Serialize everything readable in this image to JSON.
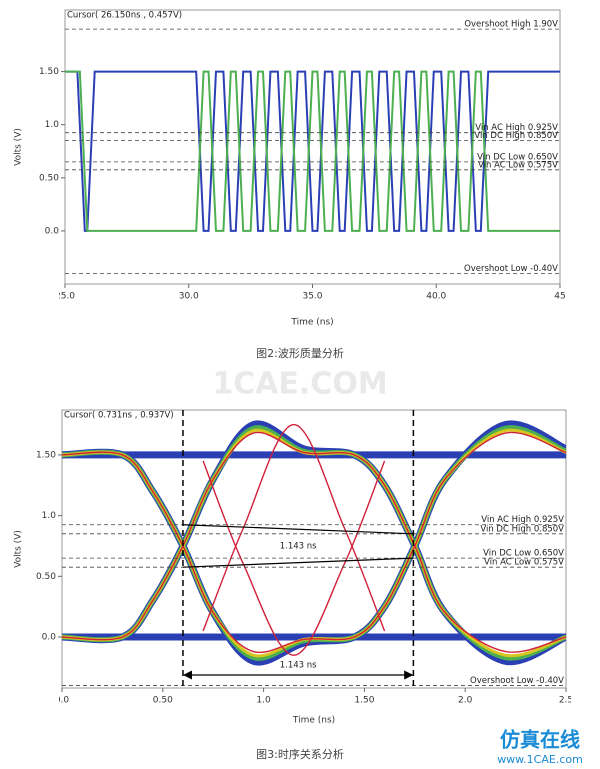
{
  "chart_data": [
    {
      "type": "line",
      "cursor": "Cursor( 26.150ns , 0.457V)",
      "xlabel": "Time (ns)",
      "ylabel": "Volts (V)",
      "caption": "图2:波形质量分析",
      "xlim": [
        25,
        45
      ],
      "xticks": [
        {
          "value": 25,
          "label": "25.0"
        },
        {
          "value": 30,
          "label": "30.0"
        },
        {
          "value": 35,
          "label": "35.0"
        },
        {
          "value": 40,
          "label": "40.0"
        },
        45
      ],
      "ylim": [
        -0.5,
        2.08
      ],
      "yticks": [
        {
          "value": 0,
          "label": "0.0"
        },
        {
          "value": 0.5,
          "label": "0.50"
        },
        {
          "value": 1,
          "label": "1.0"
        },
        {
          "value": 1.5,
          "label": "1.50"
        }
      ],
      "reference_lines": [
        {
          "label": "Overshoot High 1.90V",
          "value": 1.9
        },
        {
          "label": "Vin AC High  0.925V",
          "value": 0.925
        },
        {
          "label": "Vin DC High  0.850V",
          "value": 0.85
        },
        {
          "label": "Vin DC Low  0.650V",
          "value": 0.65
        },
        {
          "label": "Vin AC Low  0.575V",
          "value": 0.575
        },
        {
          "label": "Overshoot Low -0.40V",
          "value": -0.4
        }
      ],
      "series": [
        {
          "color": "#2b3fb5",
          "x": [
            25,
            25.5,
            25.8,
            25.9,
            26.2,
            30.3,
            30.6,
            30.8,
            31.1,
            31.4,
            31.7,
            31.9,
            32.2,
            32.5,
            32.8,
            33.0,
            33.3,
            33.6,
            33.9,
            34.1,
            34.4,
            34.7,
            35.0,
            35.2,
            35.5,
            35.8,
            36.1,
            36.3,
            36.6,
            36.9,
            37.2,
            37.4,
            37.7,
            38.0,
            38.3,
            38.5,
            38.8,
            39.1,
            39.4,
            39.6,
            39.9,
            40.2,
            40.5,
            40.7,
            41.0,
            41.3,
            41.6,
            41.8,
            42.1,
            45
          ],
          "values": [
            1.5,
            1.5,
            0,
            0,
            1.5,
            1.5,
            0,
            0,
            1.5,
            1.5,
            0,
            0,
            1.5,
            1.5,
            0,
            0,
            1.5,
            1.5,
            0,
            0,
            1.5,
            1.5,
            0,
            0,
            1.5,
            1.5,
            0,
            0,
            1.5,
            1.5,
            0,
            0,
            1.5,
            1.5,
            0,
            0,
            1.5,
            1.5,
            0,
            0,
            1.5,
            1.5,
            0,
            0,
            1.5,
            1.5,
            0,
            0,
            1.5,
            1.5
          ]
        },
        {
          "color": "#4caf50",
          "x": [
            25,
            25.6,
            25.9,
            30.3,
            30.6,
            30.8,
            31.1,
            31.4,
            31.7,
            31.9,
            32.2,
            32.5,
            32.8,
            33.0,
            33.3,
            33.6,
            33.9,
            34.1,
            34.4,
            34.7,
            35.0,
            35.2,
            35.5,
            35.8,
            36.1,
            36.3,
            36.6,
            36.9,
            37.2,
            37.4,
            37.7,
            38.0,
            38.3,
            38.5,
            38.8,
            39.1,
            39.4,
            39.6,
            39.9,
            40.2,
            40.5,
            40.7,
            41.0,
            41.3,
            41.6,
            41.8,
            42.1,
            45
          ],
          "values": [
            1.5,
            1.5,
            0,
            0,
            1.5,
            1.5,
            0,
            0,
            1.5,
            1.5,
            0,
            0,
            1.5,
            1.5,
            0,
            0,
            1.5,
            1.5,
            0,
            0,
            1.5,
            1.5,
            0,
            0,
            1.5,
            1.5,
            0,
            0,
            1.5,
            1.5,
            0,
            0,
            1.5,
            1.5,
            0,
            0,
            1.5,
            1.5,
            0,
            0,
            1.5,
            1.5,
            0,
            0,
            1.5,
            1.5,
            0,
            0
          ]
        }
      ]
    },
    {
      "type": "eye",
      "cursor": "Cursor( 0.731ns , 0.937V)",
      "xlabel": "Time (ns)",
      "ylabel": "Volts (V)",
      "caption": "图3:时序关系分析",
      "xlim": [
        0,
        2.5
      ],
      "xticks": [
        {
          "value": 0,
          "label": "0.0"
        },
        {
          "value": 0.5,
          "label": "0.50"
        },
        {
          "value": 1,
          "label": "1.0"
        },
        {
          "value": 1.5,
          "label": "1.50"
        },
        {
          "value": 2,
          "label": "2.0"
        },
        2.5
      ],
      "ylim": [
        -0.42,
        1.87
      ],
      "yticks": [
        {
          "value": 0,
          "label": "0.0"
        },
        {
          "value": 0.5,
          "label": "0.50"
        },
        {
          "value": 1,
          "label": "1.0"
        },
        {
          "value": 1.5,
          "label": "1.50"
        }
      ],
      "reference_lines": [
        {
          "label": "Vin AC High  0.925V",
          "value": 0.925
        },
        {
          "label": "Vin DC High  0.850V",
          "value": 0.85
        },
        {
          "label": "Vin DC Low  0.650V",
          "value": 0.65
        },
        {
          "label": "Vin AC Low  0.575V",
          "value": 0.575
        },
        {
          "label": "Overshoot Low -0.40V",
          "value": -0.4
        }
      ],
      "cursor_lines": [
        0.6,
        1.743
      ],
      "measurements": [
        {
          "label": "1.143 ns"
        },
        {
          "label": "1.143 ns"
        }
      ],
      "series": [
        {
          "color": "#2b3fb5",
          "x": [
            0,
            0.3,
            0.45,
            0.6,
            0.75,
            0.95,
            1.2,
            1.45,
            1.6,
            1.75,
            1.9,
            2.2,
            2.5
          ],
          "values": [
            0,
            0,
            0.3,
            0.75,
            1.3,
            1.75,
            1.55,
            1.5,
            1.25,
            0.75,
            0.2,
            -0.2,
            0
          ]
        },
        {
          "color": "#2b3fb5",
          "x": [
            0,
            0.3,
            0.45,
            0.6,
            0.75,
            0.95,
            1.2,
            1.45,
            1.6,
            1.75,
            1.9,
            2.2,
            2.5
          ],
          "values": [
            1.5,
            1.5,
            1.2,
            0.75,
            0.2,
            -0.2,
            -0.05,
            0,
            0.25,
            0.75,
            1.3,
            1.75,
            1.55
          ]
        },
        {
          "color": "#2b3fb5",
          "x": [
            0,
            2.5
          ],
          "values": [
            1.5,
            1.5
          ]
        },
        {
          "color": "#2b3fb5",
          "x": [
            0,
            2.5
          ],
          "values": [
            0,
            0
          ]
        },
        {
          "color": "#4caf50",
          "x": [
            0,
            0.3,
            0.45,
            0.6,
            0.75,
            0.95,
            1.2,
            1.45,
            1.6,
            1.75,
            1.9,
            2.2,
            2.5
          ],
          "values": [
            0,
            0,
            0.3,
            0.75,
            1.3,
            1.72,
            1.53,
            1.5,
            1.25,
            0.75,
            0.2,
            -0.17,
            0
          ]
        },
        {
          "color": "#4caf50",
          "x": [
            0,
            0.3,
            0.45,
            0.6,
            0.75,
            0.95,
            1.2,
            1.45,
            1.6,
            1.75,
            1.9,
            2.2,
            2.5
          ],
          "values": [
            1.5,
            1.5,
            1.2,
            0.75,
            0.2,
            -0.17,
            -0.03,
            0,
            0.25,
            0.75,
            1.3,
            1.72,
            1.53
          ]
        },
        {
          "color": "#d9c520",
          "x": [
            0,
            0.3,
            0.45,
            0.6,
            0.75,
            0.95,
            1.2,
            1.45,
            1.6,
            1.75,
            1.9,
            2.2,
            2.5
          ],
          "values": [
            0,
            0,
            0.3,
            0.75,
            1.3,
            1.7,
            1.52,
            1.5,
            1.25,
            0.75,
            0.2,
            -0.15,
            0
          ]
        },
        {
          "color": "#d9c520",
          "x": [
            0,
            0.3,
            0.45,
            0.6,
            0.75,
            0.95,
            1.2,
            1.45,
            1.6,
            1.75,
            1.9,
            2.2,
            2.5
          ],
          "values": [
            1.5,
            1.5,
            1.2,
            0.75,
            0.2,
            -0.15,
            -0.02,
            0,
            0.25,
            0.75,
            1.3,
            1.7,
            1.52
          ]
        },
        {
          "color": "#d0203a",
          "x": [
            0,
            0.3,
            0.45,
            0.6,
            0.75,
            0.95,
            1.2,
            1.45,
            1.6,
            1.75,
            1.9,
            2.2,
            2.5
          ],
          "values": [
            0,
            0,
            0.3,
            0.75,
            1.3,
            1.68,
            1.52,
            1.5,
            1.25,
            0.75,
            0.2,
            -0.12,
            0
          ]
        },
        {
          "color": "#d0203a",
          "x": [
            0,
            0.3,
            0.45,
            0.6,
            0.75,
            0.95,
            1.2,
            1.45,
            1.6,
            1.75,
            1.9,
            2.2,
            2.5
          ],
          "values": [
            1.5,
            1.5,
            1.2,
            0.75,
            0.2,
            -0.12,
            -0.02,
            0,
            0.25,
            0.75,
            1.3,
            1.68,
            1.52
          ]
        },
        {
          "color": "#d0203a",
          "x": [
            0.7,
            0.9,
            1.15,
            1.4,
            1.6
          ],
          "values": [
            0.05,
            0.9,
            1.75,
            0.9,
            0.05
          ]
        },
        {
          "color": "#d0203a",
          "x": [
            0.7,
            0.9,
            1.15,
            1.4,
            1.6
          ],
          "values": [
            1.45,
            0.6,
            -0.15,
            0.6,
            1.45
          ]
        }
      ]
    }
  ],
  "watermark": "1CAE.COM",
  "logo": {
    "text": "仿真在线",
    "url": "www.1CAE.com"
  }
}
